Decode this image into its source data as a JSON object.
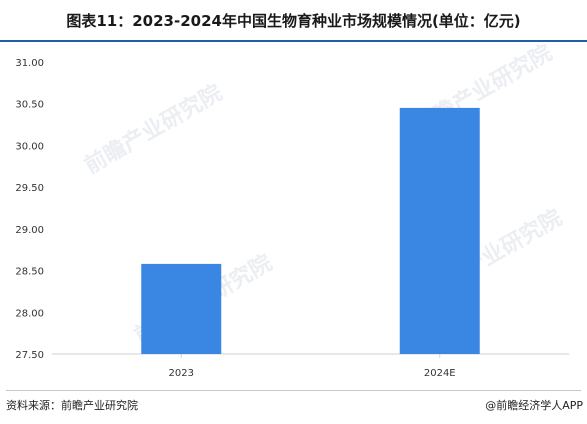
{
  "header": {
    "title": "图表11：2023-2024年中国生物育种业市场规模情况(单位：亿元)"
  },
  "chart_data": {
    "type": "bar",
    "title": "图表11：2023-2024年中国生物育种业市场规模情况(单位：亿元)",
    "categories": [
      "2023",
      "2024E"
    ],
    "values": [
      28.58,
      30.45
    ],
    "ylim": [
      27.5,
      31.0
    ],
    "yticks": [
      "31.00",
      "30.50",
      "30.00",
      "29.50",
      "29.00",
      "28.50",
      "28.00",
      "27.50"
    ],
    "ytick_values": [
      31.0,
      30.5,
      30.0,
      29.5,
      29.0,
      28.5,
      28.0,
      27.5
    ],
    "grid": false,
    "bar_color": "#3a87e3",
    "axis_color": "#d0d0d0"
  },
  "footer": {
    "source": "资料来源：前瞻产业研究院",
    "credit": "@前瞻经济学人APP"
  },
  "watermark": {
    "text": "前瞻产业研究院"
  }
}
